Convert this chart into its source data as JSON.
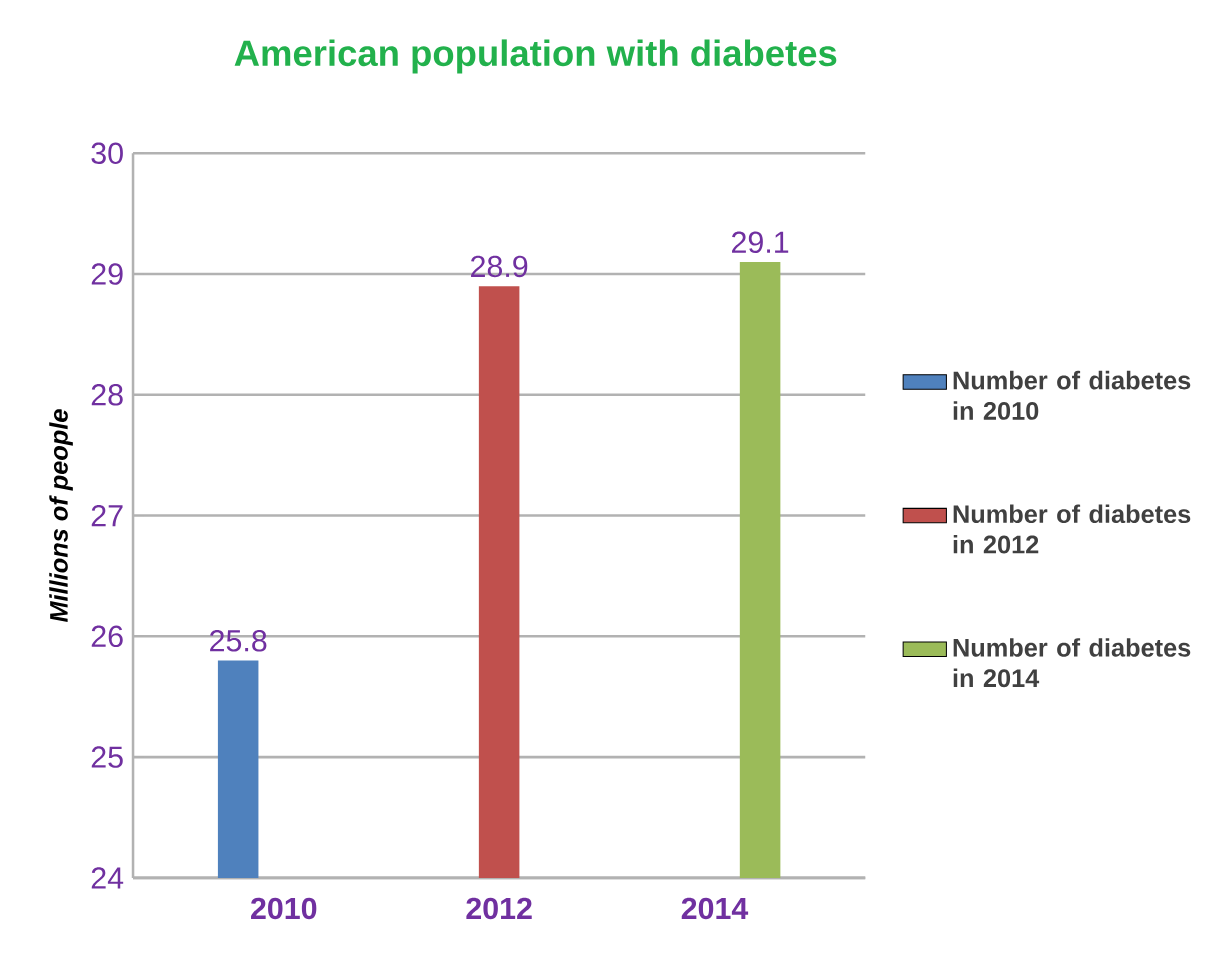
{
  "chart_data": {
    "type": "bar",
    "title": "American population  with diabetes",
    "ylabel": "Millions of people",
    "categories": [
      "2010",
      "2012",
      "2014"
    ],
    "series": [
      {
        "name": "Number of diabetes in 2010",
        "color": "#4f81bd",
        "values": [
          25.8,
          null,
          null
        ]
      },
      {
        "name": "Number of diabetes in 2012",
        "color": "#c0504d",
        "values": [
          null,
          28.9,
          null
        ]
      },
      {
        "name": "Number of diabetes in 2014",
        "color": "#9bbb59",
        "values": [
          null,
          null,
          29.1
        ]
      }
    ],
    "ylim": [
      24,
      30
    ],
    "yticks": [
      24,
      25,
      26,
      27,
      28,
      29,
      30
    ],
    "grid": "y",
    "legend": "right",
    "data_labels": true
  }
}
